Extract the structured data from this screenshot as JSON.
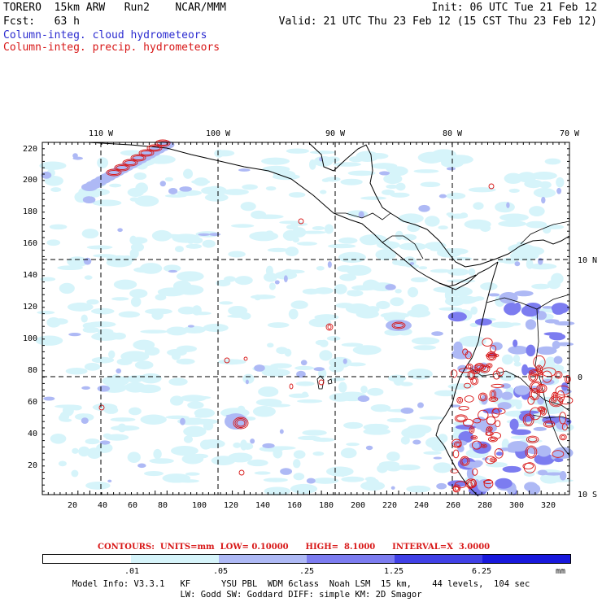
{
  "header": {
    "line1_left": "TORERO  15km ARW   Run2    NCAR/MMM",
    "line1_right": "Init: 06 UTC Tue 21 Feb 12",
    "line2_left": "Fcst:   63 h",
    "line2_right": "Valid: 21 UTC Thu 23 Feb 12 (15 CST Thu 23 Feb 12)",
    "field1": "Column-integ. cloud hydrometeors",
    "field2": "Column-integ. precip. hydrometeors",
    "field1_color": "#2c2cd0",
    "field2_color": "#d81818"
  },
  "map": {
    "lon_labels": [
      "110 W",
      "100 W",
      "90 W",
      "80 W",
      "70 W"
    ],
    "lat_labels": [
      "10 N",
      "0",
      "10 S"
    ],
    "y_ticks": [
      "220",
      "200",
      "180",
      "160",
      "140",
      "120",
      "100",
      "80",
      "60",
      "40",
      "20"
    ],
    "x_ticks": [
      "20",
      "40",
      "60",
      "80",
      "100",
      "120",
      "140",
      "160",
      "180",
      "200",
      "220",
      "240",
      "260",
      "280",
      "300",
      "320"
    ],
    "grid_style": "dashed"
  },
  "contours": {
    "text": "CONTOURS:  UNITS=mm  LOW= 0.10000      HIGH=  8.1000      INTERVAL=X  3.0000"
  },
  "colorbar": {
    "labels": [
      ".01",
      ".05",
      ".25",
      "1.25",
      "6.25",
      "mm"
    ],
    "colors": [
      "#ffffff",
      "#d6f4fa",
      "#aeb9f5",
      "#7c7cf0",
      "#4040e6",
      "#1818dc"
    ]
  },
  "model_info": {
    "line1": "Model Info: V3.3.1   KF      YSU PBL  WDM 6class  Noah LSM  15 km,    44 levels,  104 sec",
    "line2": "LW: Godd SW: Goddard DIFF: simple KM: 2D Smagor"
  }
}
